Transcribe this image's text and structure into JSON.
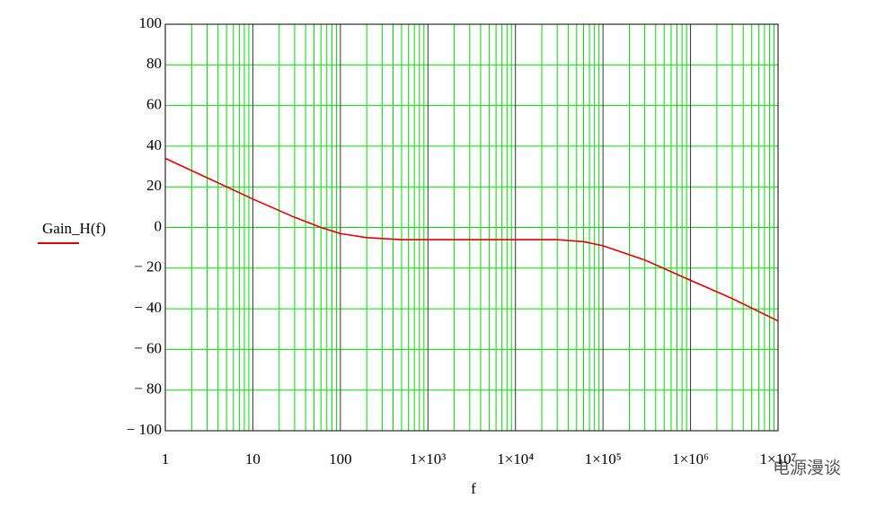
{
  "chart_data": {
    "type": "line",
    "log_x": true,
    "grid": true,
    "minor_grid": true,
    "x_label": "f",
    "y_label": "Gain_H(f)",
    "watermark": "电源漫谈",
    "xlim": [
      1,
      10000000
    ],
    "ylim": [
      -100,
      100
    ],
    "xticks": [
      1,
      10,
      100,
      {
        "value": 1000,
        "label": "1×10³"
      },
      {
        "value": 10000,
        "label": "1×10⁴"
      },
      {
        "value": 100000,
        "label": "1×10⁵"
      },
      {
        "value": 1000000,
        "label": "1×10⁶"
      },
      {
        "value": 10000000,
        "label": "1×10⁷"
      }
    ],
    "yticks": [
      100,
      80,
      60,
      40,
      20,
      0,
      {
        "value": -20,
        "label": "− 20"
      },
      {
        "value": -40,
        "label": "− 40"
      },
      {
        "value": -60,
        "label": "− 60"
      },
      {
        "value": -80,
        "label": "− 80"
      },
      {
        "value": -100,
        "label": "− 100"
      }
    ],
    "grid_color": "#00dd00",
    "major_grid_color": "#333333",
    "series": [
      {
        "name": "Gain_H(f)",
        "color": "#e00000",
        "x": [
          1,
          10,
          30,
          60,
          100,
          200,
          500,
          1000,
          10000,
          30000,
          60000,
          100000,
          300000,
          1000000,
          3000000,
          10000000
        ],
        "values": [
          34,
          14,
          5,
          0,
          -3,
          -5,
          -6,
          -6,
          -6,
          -6,
          -7,
          -9,
          -16,
          -26,
          -35,
          -46
        ]
      }
    ]
  }
}
